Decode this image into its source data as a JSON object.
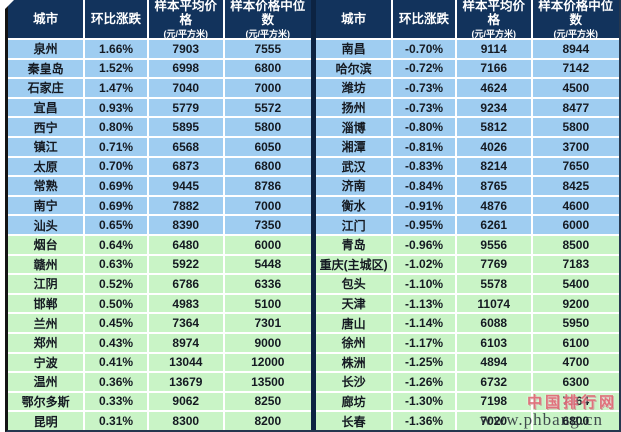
{
  "watermark": {
    "logo": "中国排行网",
    "url": "www.phbang.cn"
  },
  "colors": {
    "header_bg": "#12335c",
    "row_blue": "#9fcdf1",
    "row_green": "#c9f4c6",
    "divider": "#0c2342"
  },
  "chart_data": {
    "type": "table",
    "columns": [
      "城市",
      "环比涨跌",
      "样本平均价格",
      "样本价格中位数"
    ],
    "unit_note": "(元/平方米)",
    "tables": [
      {
        "blue_row_count": 10,
        "rows": [
          {
            "city": "泉州",
            "change": "1.66%",
            "avg": "7903",
            "median": "7555"
          },
          {
            "city": "秦皇岛",
            "change": "1.52%",
            "avg": "6998",
            "median": "6800"
          },
          {
            "city": "石家庄",
            "change": "1.47%",
            "avg": "7040",
            "median": "7000"
          },
          {
            "city": "宜昌",
            "change": "0.93%",
            "avg": "5779",
            "median": "5572"
          },
          {
            "city": "西宁",
            "change": "0.80%",
            "avg": "5895",
            "median": "5800"
          },
          {
            "city": "镇江",
            "change": "0.71%",
            "avg": "6568",
            "median": "6050"
          },
          {
            "city": "太原",
            "change": "0.70%",
            "avg": "6873",
            "median": "6800"
          },
          {
            "city": "常熟",
            "change": "0.69%",
            "avg": "9445",
            "median": "8786"
          },
          {
            "city": "南宁",
            "change": "0.69%",
            "avg": "7882",
            "median": "7000"
          },
          {
            "city": "汕头",
            "change": "0.65%",
            "avg": "8390",
            "median": "7350"
          },
          {
            "city": "烟台",
            "change": "0.64%",
            "avg": "6480",
            "median": "6000"
          },
          {
            "city": "赣州",
            "change": "0.63%",
            "avg": "5922",
            "median": "5448"
          },
          {
            "city": "江阴",
            "change": "0.52%",
            "avg": "6786",
            "median": "6336"
          },
          {
            "city": "邯郸",
            "change": "0.50%",
            "avg": "4983",
            "median": "5100"
          },
          {
            "city": "兰州",
            "change": "0.45%",
            "avg": "7364",
            "median": "7301"
          },
          {
            "city": "郑州",
            "change": "0.43%",
            "avg": "8974",
            "median": "9000"
          },
          {
            "city": "宁波",
            "change": "0.41%",
            "avg": "13044",
            "median": "12000"
          },
          {
            "city": "温州",
            "change": "0.36%",
            "avg": "13679",
            "median": "13500"
          },
          {
            "city": "鄂尔多斯",
            "change": "0.33%",
            "avg": "9062",
            "median": "8250"
          },
          {
            "city": "昆明",
            "change": "0.31%",
            "avg": "8300",
            "median": "8200"
          }
        ]
      },
      {
        "blue_row_count": 10,
        "rows": [
          {
            "city": "南昌",
            "change": "-0.70%",
            "avg": "9114",
            "median": "8944"
          },
          {
            "city": "哈尔滨",
            "change": "-0.72%",
            "avg": "7166",
            "median": "7142"
          },
          {
            "city": "潍坊",
            "change": "-0.73%",
            "avg": "4624",
            "median": "4500"
          },
          {
            "city": "扬州",
            "change": "-0.73%",
            "avg": "9234",
            "median": "8477"
          },
          {
            "city": "淄博",
            "change": "-0.80%",
            "avg": "5812",
            "median": "5800"
          },
          {
            "city": "湘潭",
            "change": "-0.81%",
            "avg": "4026",
            "median": "3700"
          },
          {
            "city": "武汉",
            "change": "-0.83%",
            "avg": "8214",
            "median": "7650"
          },
          {
            "city": "济南",
            "change": "-0.84%",
            "avg": "8765",
            "median": "8425"
          },
          {
            "city": "衡水",
            "change": "-0.91%",
            "avg": "4876",
            "median": "4600"
          },
          {
            "city": "江门",
            "change": "-0.95%",
            "avg": "6261",
            "median": "6000"
          },
          {
            "city": "青岛",
            "change": "-0.96%",
            "avg": "9556",
            "median": "8500"
          },
          {
            "city": "重庆(主城区)",
            "change": "-1.02%",
            "avg": "7769",
            "median": "7183"
          },
          {
            "city": "包头",
            "change": "-1.10%",
            "avg": "5578",
            "median": "5400"
          },
          {
            "city": "天津",
            "change": "-1.13%",
            "avg": "11074",
            "median": "9200"
          },
          {
            "city": "唐山",
            "change": "-1.14%",
            "avg": "6088",
            "median": "5950"
          },
          {
            "city": "徐州",
            "change": "-1.17%",
            "avg": "6103",
            "median": "6100"
          },
          {
            "city": "株洲",
            "change": "-1.25%",
            "avg": "4894",
            "median": "4700"
          },
          {
            "city": "长沙",
            "change": "-1.26%",
            "avg": "6732",
            "median": "6300"
          },
          {
            "city": "廊坊",
            "change": "-1.30%",
            "avg": "7198",
            "median": "7164"
          },
          {
            "city": "长春",
            "change": "-1.36%",
            "avg": "7020",
            "median": "6800"
          }
        ]
      }
    ]
  }
}
